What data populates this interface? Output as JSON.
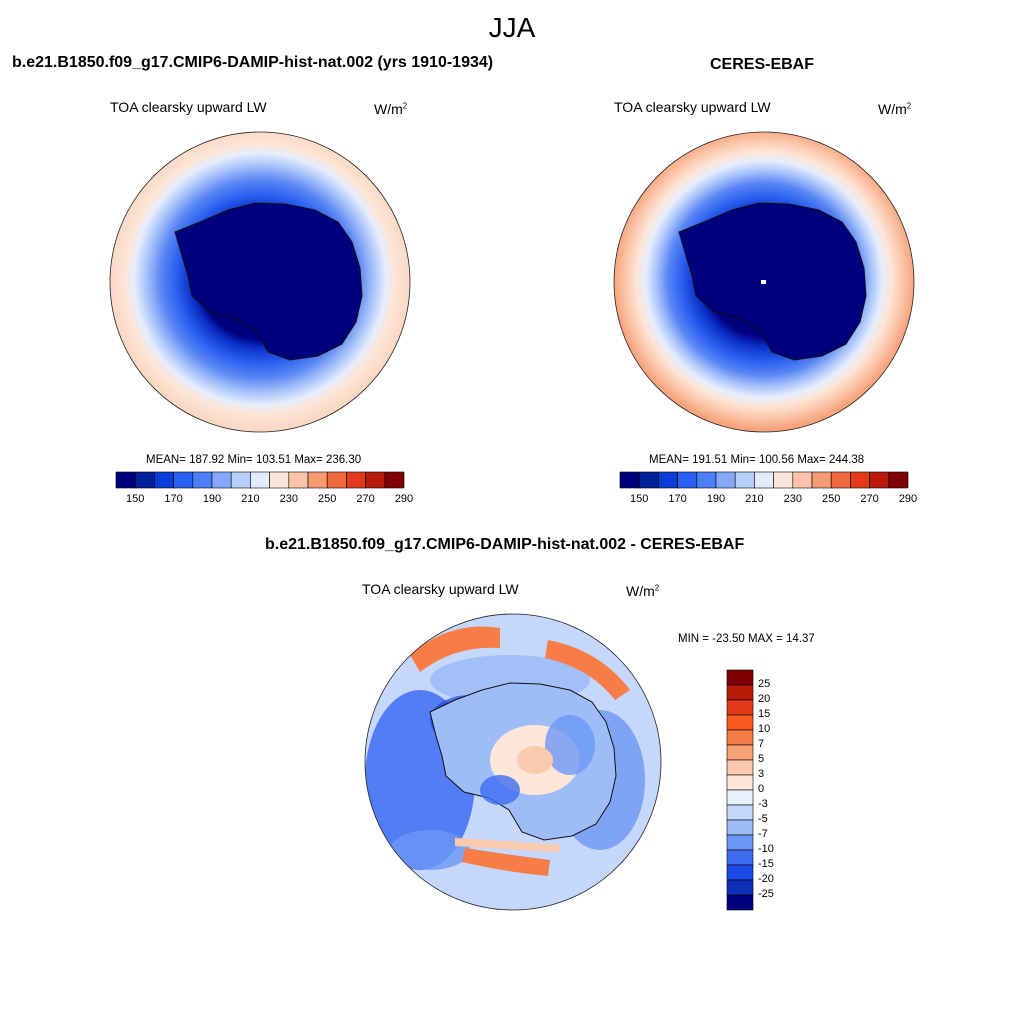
{
  "figure": {
    "title": "JJA"
  },
  "panels": [
    {
      "title": "b.e21.B1850.f09_g17.CMIP6-DAMIP-hist-nat.002 (yrs 1910-1934)",
      "variable": "TOA clearsky upward LW",
      "units": "W/m",
      "units_sup": "2",
      "stats": "MEAN= 187.92  Min= 103.51  Max= 236.30",
      "colorbar_ticks": [
        "150",
        "170",
        "190",
        "210",
        "230",
        "250",
        "270",
        "290"
      ]
    },
    {
      "title": "CERES-EBAF",
      "variable": "TOA clearsky upward LW",
      "units": "W/m",
      "units_sup": "2",
      "stats": "MEAN= 191.51  Min= 100.56  Max= 244.38",
      "colorbar_ticks": [
        "150",
        "170",
        "190",
        "210",
        "230",
        "250",
        "270",
        "290"
      ]
    },
    {
      "title": "b.e21.B1850.f09_g17.CMIP6-DAMIP-hist-nat.002 - CERES-EBAF",
      "variable": "TOA clearsky upward LW",
      "units": "W/m",
      "units_sup": "2",
      "stats": "MIN = -23.50 MAX =  14.37",
      "colorbar_ticks": [
        "25",
        "20",
        "15",
        "10",
        "7",
        "5",
        "3",
        "0",
        "-3",
        "-5",
        "-7",
        "-10",
        "-15",
        "-20",
        "-25"
      ]
    }
  ],
  "colors": {
    "abs_scale": [
      "#00007f",
      "#002298",
      "#0a3fd8",
      "#2a5ff0",
      "#4d7ef5",
      "#86a8f8",
      "#b7cdfb",
      "#e2ecfd",
      "#fde5d6",
      "#fbc4a8",
      "#f79a74",
      "#f2693f",
      "#e23a1a",
      "#b81a08",
      "#7f0000"
    ],
    "diff_scale": [
      "#7f0000",
      "#b81a08",
      "#e23a1a",
      "#f95a22",
      "#f77c46",
      "#f9a275",
      "#fbc9ad",
      "#fde6d8",
      "#e9f1fd",
      "#c5d8fb",
      "#9dbcf8",
      "#6d97f5",
      "#3e6df2",
      "#1a49e6",
      "#0f2fb8",
      "#00007f"
    ]
  }
}
